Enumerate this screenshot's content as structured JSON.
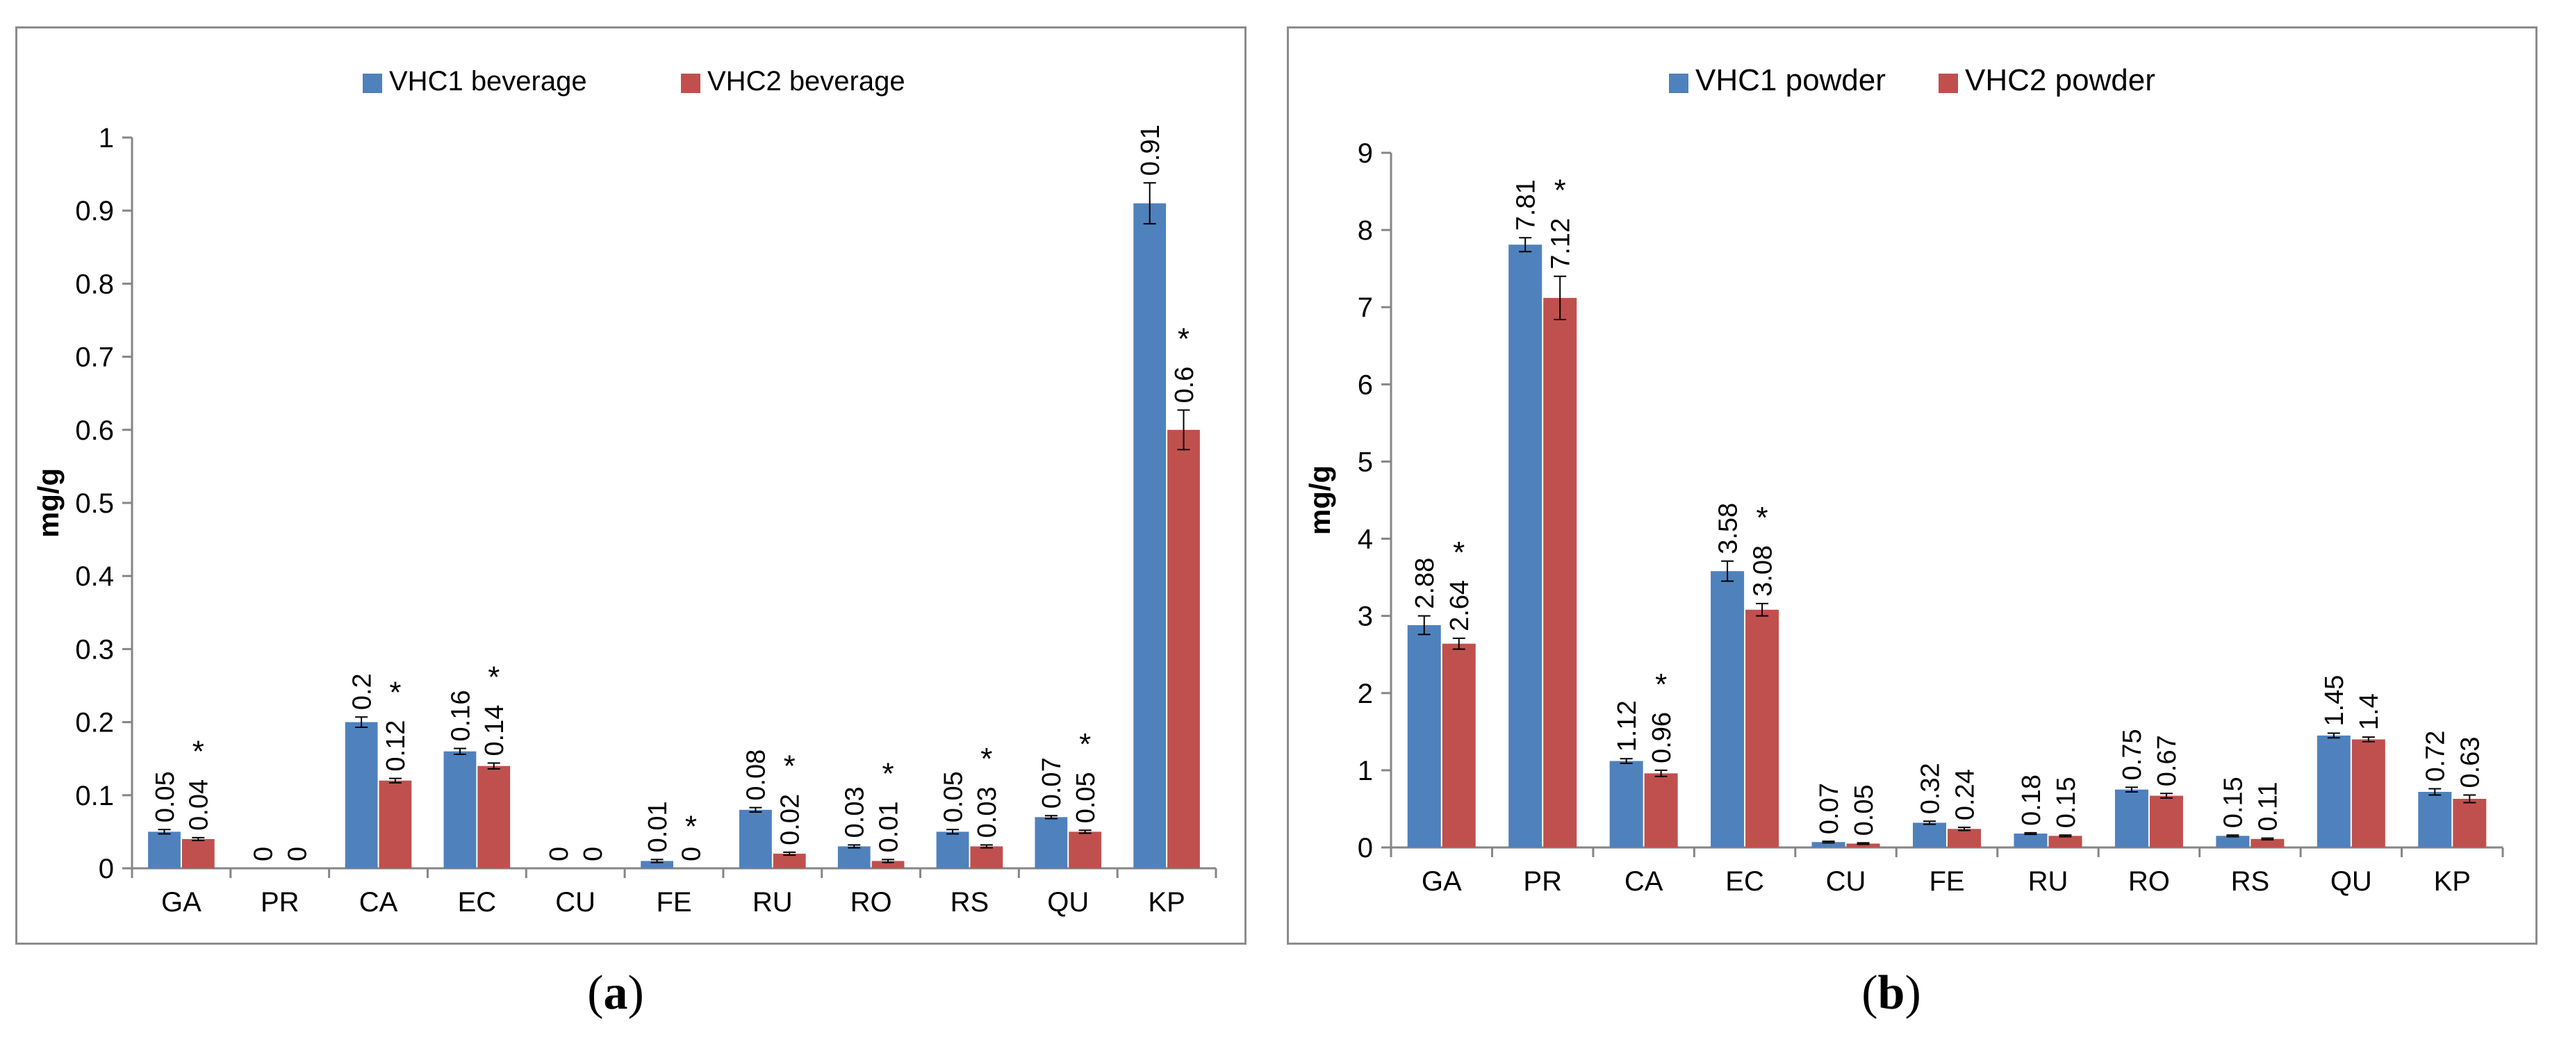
{
  "panels": [
    {
      "caption_prefix": "(",
      "caption_letter": "a",
      "caption_suffix": ")"
    },
    {
      "caption_prefix": "(",
      "caption_letter": "b",
      "caption_suffix": ")"
    }
  ],
  "chart_data": [
    {
      "type": "bar",
      "title": "",
      "xlabel": "",
      "ylabel": "mg/g",
      "ylim": [
        0,
        1
      ],
      "yticks": [
        "0",
        "0.1",
        "0.2",
        "0.3",
        "0.4",
        "0.5",
        "0.6",
        "0.7",
        "0.8",
        "0.9",
        "1"
      ],
      "grid": false,
      "legend_position": "top-center",
      "categories": [
        "GA",
        "PR",
        "CA",
        "EC",
        "CU",
        "FE",
        "RU",
        "RO",
        "RS",
        "QU",
        "KP"
      ],
      "series": [
        {
          "name": "VHC1 beverage",
          "color": "#4f81bd",
          "values": [
            0.05,
            0,
            0.2,
            0.16,
            0,
            0.01,
            0.08,
            0.03,
            0.05,
            0.07,
            0.91
          ],
          "errors": [
            0.003,
            0,
            0.007,
            0.004,
            0,
            0.002,
            0.003,
            0.002,
            0.003,
            0.002,
            0.028
          ],
          "labels": [
            "0.05",
            "0",
            "0.2",
            "0.16",
            "0",
            "0.01",
            "0.08",
            "0.03",
            "0.05",
            "0.07",
            "0.91"
          ]
        },
        {
          "name": "VHC2 beverage",
          "color": "#c0504d",
          "values": [
            0.04,
            0,
            0.12,
            0.14,
            0,
            0,
            0.02,
            0.01,
            0.03,
            0.05,
            0.6
          ],
          "errors": [
            0.002,
            0,
            0.003,
            0.004,
            0,
            0,
            0.002,
            0.002,
            0.002,
            0.002,
            0.027
          ],
          "labels": [
            "0.04",
            "0",
            "0.12",
            "0.14",
            "0",
            "0",
            "0.02",
            "0.01",
            "0.03",
            "0.05",
            "0.6"
          ]
        }
      ],
      "significance_marker": "*",
      "significant_categories": [
        "GA",
        "CA",
        "EC",
        "FE",
        "RU",
        "RO",
        "RS",
        "QU",
        "KP"
      ]
    },
    {
      "type": "bar",
      "title": "",
      "xlabel": "",
      "ylabel": "mg/g",
      "ylim": [
        0,
        9
      ],
      "yticks": [
        "0",
        "1",
        "2",
        "3",
        "4",
        "5",
        "6",
        "7",
        "8",
        "9"
      ],
      "grid": false,
      "legend_position": "top-center",
      "categories": [
        "GA",
        "PR",
        "CA",
        "EC",
        "CU",
        "FE",
        "RU",
        "RO",
        "RS",
        "QU",
        "KP"
      ],
      "series": [
        {
          "name": "VHC1 powder",
          "color": "#4f81bd",
          "values": [
            2.88,
            7.81,
            1.12,
            3.58,
            0.07,
            0.32,
            0.18,
            0.75,
            0.15,
            1.45,
            0.72
          ],
          "errors": [
            0.12,
            0.09,
            0.03,
            0.13,
            0.01,
            0.02,
            0.01,
            0.03,
            0.01,
            0.03,
            0.04
          ],
          "labels": [
            "2.88",
            "7.81",
            "1.12",
            "3.58",
            "0.07",
            "0.32",
            "0.18",
            "0.75",
            "0.15",
            "1.45",
            "0.72"
          ]
        },
        {
          "name": "VHC2 powder",
          "color": "#c0504d",
          "values": [
            2.64,
            7.12,
            0.96,
            3.08,
            0.05,
            0.24,
            0.15,
            0.67,
            0.11,
            1.4,
            0.63
          ],
          "errors": [
            0.07,
            0.28,
            0.04,
            0.08,
            0.01,
            0.02,
            0.01,
            0.03,
            0.01,
            0.03,
            0.05
          ],
          "labels": [
            "2.64",
            "7.12",
            "0.96",
            "3.08",
            "0.05",
            "0.24",
            "0.15",
            "0.67",
            "0.11",
            "1.4",
            "0.63"
          ]
        }
      ],
      "significance_marker": "*",
      "significant_categories": [
        "GA",
        "PR",
        "CA",
        "EC"
      ]
    }
  ]
}
